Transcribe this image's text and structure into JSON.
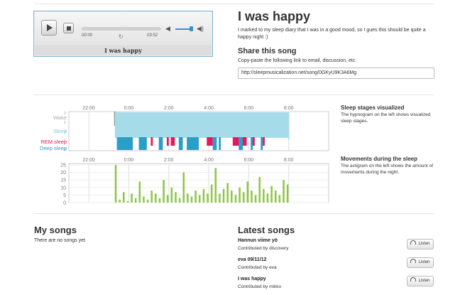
{
  "player": {
    "elapsed": "00:00",
    "duration": "03:52",
    "caption": "I was happy",
    "play_icon": "play-icon",
    "stop_icon": "stop-icon"
  },
  "song": {
    "title": "I was happy",
    "description": "I marked to my sleep diary that I was in a good mood, so I gues this should be quite a happy night :)"
  },
  "share": {
    "heading": "Share this song",
    "instruction": "Copy-paste the following link to email, discussion, etc:",
    "url": "http://sleepmusicalization.net/song/0GKyU9K3A6Mg"
  },
  "hypnogram": {
    "time_labels": [
      "22:00",
      "0:00",
      "2:00",
      "4:00",
      "6:00",
      "8:00"
    ],
    "y_ticks": [
      "2",
      "1",
      "0",
      "-1",
      "-2"
    ],
    "stage_labels": [
      {
        "text": "Wake",
        "color": "#aaaaaa"
      },
      {
        "text": "Sleep",
        "color": "#7cc8dc"
      },
      {
        "text": "REM sleep",
        "color": "#e8175d"
      },
      {
        "text": "Deep sleep",
        "color": "#2a9ec8"
      }
    ],
    "title": "Sleep stages visualized",
    "text": "The hypnogram on the left shows visualized sleep stages."
  },
  "actigram": {
    "time_labels": [
      "22:00",
      "0:00",
      "2:00",
      "4:00",
      "6:00",
      "8:00"
    ],
    "y_ticks": [
      "25",
      "20",
      "15",
      "10",
      "5",
      "0"
    ],
    "title": "Movements during the sleep",
    "text": "The actigram on the left shows the amount of movements during the night.",
    "bar_color": "#8cc63f"
  },
  "chart_data": [
    {
      "type": "line",
      "title": "Sleep stages visualized",
      "x_ticks": [
        "22:00",
        "0:00",
        "2:00",
        "4:00",
        "6:00",
        "8:00"
      ],
      "y_ticks": [
        2,
        1,
        0,
        -1,
        -2
      ],
      "y_categories": [
        "Wake",
        "Sleep",
        "REM sleep",
        "Deep sleep"
      ],
      "sleep_band": [
        23.3,
        32.0
      ],
      "rem_segments": [
        [
          25.1,
          25.2
        ],
        [
          25.9,
          26.0
        ],
        [
          26.1,
          26.3
        ],
        [
          26.6,
          26.7
        ],
        [
          27.9,
          28.2
        ],
        [
          29.2,
          29.9
        ],
        [
          30.1,
          30.3
        ],
        [
          30.7,
          30.8
        ]
      ],
      "deep_segments": [
        [
          23.4,
          24.2
        ],
        [
          24.5,
          24.9
        ],
        [
          25.5,
          25.7
        ],
        [
          26.5,
          26.7
        ],
        [
          26.9,
          27.5
        ],
        [
          28.2,
          28.4
        ],
        [
          28.5,
          28.6
        ],
        [
          29.5,
          29.7
        ],
        [
          30.1,
          30.2
        ],
        [
          30.6,
          30.7
        ]
      ]
    },
    {
      "type": "bar",
      "title": "Movements during the sleep",
      "x_ticks": [
        "22:00",
        "0:00",
        "2:00",
        "4:00",
        "6:00",
        "8:00"
      ],
      "ylim": [
        0,
        25
      ],
      "y_ticks": [
        25,
        20,
        15,
        10,
        5,
        0
      ],
      "x": [
        23.3,
        23.5,
        23.7,
        23.9,
        24.1,
        24.3,
        24.5,
        24.7,
        24.9,
        25.1,
        25.3,
        25.5,
        25.7,
        25.9,
        26.1,
        26.3,
        26.5,
        26.7,
        26.9,
        27.1,
        27.3,
        27.5,
        27.7,
        27.9,
        28.1,
        28.3,
        28.5,
        28.7,
        28.9,
        29.1,
        29.3,
        29.5,
        29.7,
        29.9,
        30.1,
        30.3,
        30.5,
        30.7,
        30.9,
        31.1,
        31.3,
        31.5,
        31.7,
        31.9
      ],
      "values": [
        25,
        2,
        7,
        1,
        6,
        3,
        14,
        4,
        2,
        8,
        6,
        3,
        15,
        5,
        10,
        7,
        3,
        20,
        6,
        4,
        8,
        5,
        9,
        6,
        12,
        23,
        6,
        9,
        13,
        8,
        5,
        10,
        7,
        14,
        8,
        5,
        17,
        9,
        6,
        11,
        8,
        5,
        15,
        12
      ]
    }
  ],
  "my_songs": {
    "heading": "My songs",
    "empty_text": "There are no songs yet"
  },
  "latest_songs": {
    "heading": "Latest songs",
    "listen_label": "Listen",
    "items": [
      {
        "title": "Hannun viime yö",
        "by": "Contributed by discovery"
      },
      {
        "title": "eva 09/11/12",
        "by": "Contributed by eva"
      },
      {
        "title": "I was happy",
        "by": "Contributed by mikko"
      }
    ]
  }
}
